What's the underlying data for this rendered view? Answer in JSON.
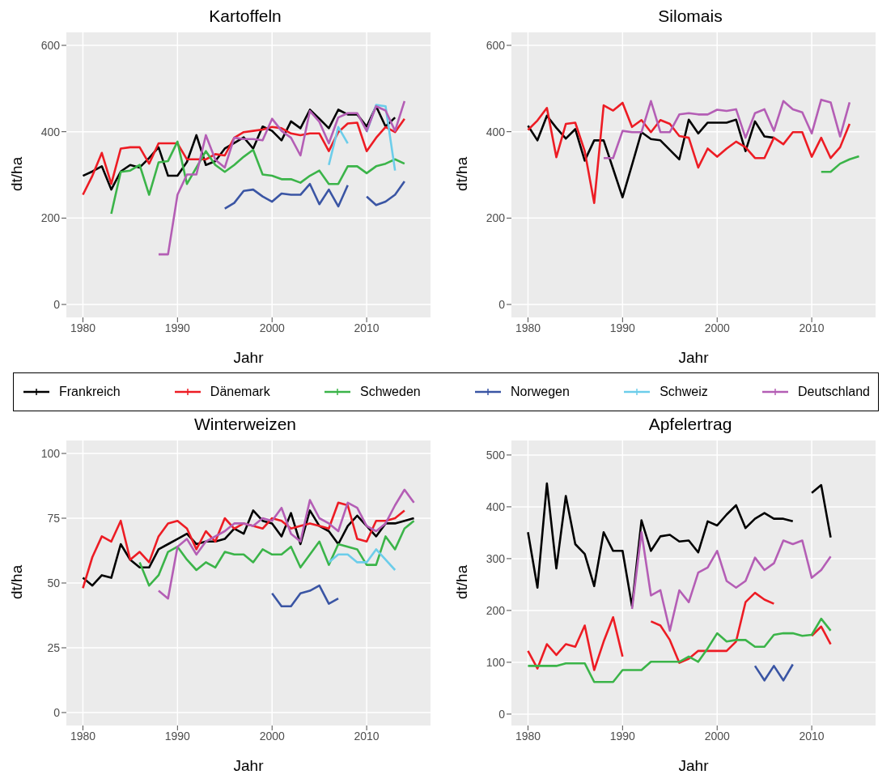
{
  "chart_data": [
    {
      "type": "line",
      "title": "Kartoffeln",
      "xlabel": "Jahr",
      "ylabel": "dt/ha",
      "xlim": [
        1978.25,
        2016.75
      ],
      "xticks": [
        1980,
        1990,
        2000,
        2010
      ],
      "ylim": [
        -30,
        630
      ],
      "yticks": [
        0,
        200,
        400,
        600
      ],
      "grid": true,
      "legend": "bottom",
      "series": [
        {
          "name": "Frankreich",
          "color": "#000000",
          "x": [
            1980,
            1981,
            1982,
            1983,
            1984,
            1985,
            1986,
            1987,
            1988,
            1989,
            1990,
            1991,
            1992,
            1993,
            1994,
            1995,
            1996,
            1997,
            1998,
            1999,
            2000,
            2001,
            2002,
            2003,
            2004,
            2005,
            2006,
            2007,
            2008,
            2009,
            2010,
            2011,
            2012,
            2013
          ],
          "values": [
            298,
            308,
            320,
            266,
            308,
            323,
            317,
            339,
            364,
            298,
            298,
            330,
            392,
            323,
            332,
            361,
            374,
            387,
            361,
            412,
            402,
            380,
            424,
            408,
            451,
            430,
            408,
            451,
            440,
            440,
            412,
            459,
            412,
            433
          ]
        },
        {
          "name": "Dänemark",
          "color": "#ed1c24",
          "x": [
            1980,
            1981,
            1982,
            1983,
            1984,
            1985,
            1986,
            1987,
            1988,
            1989,
            1990,
            1991,
            1992,
            1993,
            1994,
            1995,
            1996,
            1997,
            1998,
            1999,
            2000,
            2001,
            2002,
            2003,
            2004,
            2005,
            2006,
            2007,
            2008,
            2009,
            2010,
            2011,
            2012,
            2013,
            2014
          ],
          "values": [
            254,
            298,
            351,
            279,
            361,
            364,
            364,
            326,
            373,
            373,
            373,
            336,
            336,
            336,
            348,
            345,
            386,
            399,
            402,
            405,
            411,
            408,
            396,
            392,
            396,
            396,
            355,
            399,
            419,
            421,
            355,
            386,
            411,
            399,
            430
          ]
        },
        {
          "name": "Schweden",
          "color": "#3bb449",
          "x": [
            1983,
            1984,
            1985,
            1986,
            1987,
            1988,
            1989,
            1990,
            1991,
            1992,
            1993,
            1994,
            1995,
            1996,
            1997,
            1998,
            1999,
            2000,
            2001,
            2002,
            2003,
            2004,
            2005,
            2006,
            2007,
            2008,
            2009,
            2010,
            2011,
            2012,
            2013,
            2014
          ],
          "values": [
            210,
            307,
            310,
            323,
            254,
            329,
            332,
            377,
            279,
            317,
            355,
            323,
            307,
            323,
            342,
            358,
            301,
            298,
            290,
            290,
            282,
            298,
            310,
            279,
            279,
            320,
            320,
            304,
            320,
            326,
            336,
            326
          ]
        },
        {
          "name": "Norwegen",
          "color": "#3a55a4",
          "x": [
            1995,
            1996,
            1997,
            1998,
            1999,
            2000,
            2001,
            2002,
            2003,
            2004,
            2005,
            2006,
            2007,
            2008,
            2009,
            2010,
            2011,
            2012,
            2013,
            2014
          ],
          "values": [
            222,
            235,
            263,
            266,
            250,
            238,
            257,
            254,
            254,
            279,
            232,
            266,
            227,
            276,
            null,
            250,
            230,
            238,
            254,
            285
          ]
        },
        {
          "name": "Schweiz",
          "color": "#6ccdea",
          "x": [
            2006,
            2007,
            2008,
            2009,
            2010,
            2011,
            2012,
            2013
          ],
          "values": [
            323,
            411,
            373,
            null,
            399,
            462,
            459,
            310
          ]
        },
        {
          "name": "Deutschland",
          "color": "#b45eb5",
          "x": [
            1988,
            1989,
            1990,
            1991,
            1992,
            1993,
            1994,
            1995,
            1996,
            1997,
            1998,
            1999,
            2000,
            2001,
            2002,
            2003,
            2004,
            2005,
            2006,
            2007,
            2008,
            2009,
            2010,
            2011,
            2012,
            2013,
            2014
          ],
          "values": [
            116,
            116,
            254,
            301,
            301,
            392,
            335,
            317,
            386,
            383,
            383,
            380,
            430,
            402,
            386,
            345,
            448,
            423,
            373,
            433,
            443,
            443,
            402,
            459,
            449,
            402,
            471
          ]
        }
      ]
    },
    {
      "type": "line",
      "title": "Silomais",
      "xlabel": "Jahr",
      "ylabel": "dt/ha",
      "xlim": [
        1978.25,
        2016.75
      ],
      "xticks": [
        1980,
        1990,
        2000,
        2010
      ],
      "ylim": [
        -30,
        630
      ],
      "yticks": [
        0,
        200,
        400,
        600
      ],
      "grid": true,
      "series": [
        {
          "name": "Frankreich",
          "color": "#000000",
          "x": [
            1980,
            1981,
            1982,
            1983,
            1984,
            1985,
            1986,
            1987,
            1988,
            1989,
            1990,
            1991,
            1992,
            1993,
            1994,
            1995,
            1996,
            1997,
            1998,
            1999,
            2000,
            2001,
            2002,
            2003,
            2004,
            2005,
            2006
          ],
          "values": [
            414,
            380,
            437,
            409,
            384,
            406,
            333,
            380,
            380,
            314,
            248,
            323,
            399,
            383,
            380,
            358,
            336,
            428,
            396,
            421,
            421,
            421,
            428,
            355,
            424,
            389,
            386
          ]
        },
        {
          "name": "Dänemark",
          "color": "#ed1c24",
          "x": [
            1980,
            1981,
            1982,
            1983,
            1984,
            1985,
            1986,
            1987,
            1988,
            1989,
            1990,
            1991,
            1992,
            1993,
            1994,
            1995,
            1996,
            1997,
            1998,
            1999,
            2000,
            2001,
            2002,
            2003,
            2004,
            2005,
            2006,
            2007,
            2008,
            2009,
            2010,
            2011,
            2012,
            2013,
            2014
          ],
          "values": [
            404,
            426,
            455,
            341,
            418,
            421,
            355,
            235,
            461,
            449,
            467,
            411,
            427,
            399,
            427,
            418,
            390,
            386,
            317,
            361,
            342,
            361,
            377,
            364,
            339,
            339,
            386,
            371,
            399,
            399,
            342,
            386,
            339,
            364,
            418
          ]
        },
        {
          "name": "Schweden",
          "color": "#3bb449",
          "x": [
            2011,
            2012,
            2013,
            2014,
            2015
          ],
          "values": [
            307,
            307,
            326,
            336,
            343
          ]
        },
        {
          "name": "Deutschland",
          "color": "#b45eb5",
          "x": [
            1988,
            1989,
            1990,
            1991,
            1992,
            1993,
            1994,
            1995,
            1996,
            1997,
            1998,
            1999,
            2000,
            2001,
            2002,
            2003,
            2004,
            2005,
            2006,
            2007,
            2008,
            2009,
            2010,
            2011,
            2012,
            2013,
            2014
          ],
          "values": [
            339,
            339,
            402,
            399,
            399,
            471,
            399,
            399,
            440,
            443,
            440,
            440,
            451,
            448,
            452,
            386,
            443,
            452,
            402,
            471,
            452,
            445,
            396,
            474,
            468,
            389,
            468
          ]
        }
      ]
    },
    {
      "type": "line",
      "title": "Winterweizen",
      "xlabel": "Jahr",
      "ylabel": "dt/ha",
      "xlim": [
        1978.25,
        2016.75
      ],
      "xticks": [
        1980,
        1990,
        2000,
        2010
      ],
      "ylim": [
        -5,
        105
      ],
      "yticks": [
        0,
        25,
        50,
        75,
        100
      ],
      "grid": true,
      "series": [
        {
          "name": "Frankreich",
          "color": "#000000",
          "x": [
            1980,
            1981,
            1982,
            1983,
            1984,
            1985,
            1986,
            1987,
            1988,
            1989,
            1990,
            1991,
            1992,
            1993,
            1994,
            1995,
            1996,
            1997,
            1998,
            1999,
            2000,
            2001,
            2002,
            2003,
            2004,
            2005,
            2006,
            2007,
            2008,
            2009,
            2010,
            2011,
            2012,
            2013,
            2014,
            2015
          ],
          "values": [
            52,
            49,
            53,
            52,
            65,
            59,
            56,
            56,
            63,
            65,
            67,
            69,
            65,
            66,
            66,
            67,
            71,
            69,
            78,
            74,
            73,
            68,
            77,
            65,
            78,
            72,
            70,
            65,
            72,
            76,
            72,
            68,
            73,
            73,
            74,
            75
          ]
        },
        {
          "name": "Dänemark",
          "color": "#ed1c24",
          "x": [
            1980,
            1981,
            1982,
            1983,
            1984,
            1985,
            1986,
            1987,
            1988,
            1989,
            1990,
            1991,
            1992,
            1993,
            1994,
            1995,
            1996,
            1997,
            1998,
            1999,
            2000,
            2001,
            2002,
            2003,
            2004,
            2005,
            2006,
            2007,
            2008,
            2009,
            2010,
            2011,
            2012,
            2013,
            2014
          ],
          "values": [
            48,
            60,
            68,
            66,
            74,
            59,
            62,
            58,
            68,
            73,
            74,
            71,
            63,
            70,
            66,
            75,
            71,
            73,
            72,
            71,
            75,
            74,
            71,
            72,
            73,
            72,
            71,
            81,
            80,
            67,
            66,
            74,
            74,
            75,
            78
          ]
        },
        {
          "name": "Schweden",
          "color": "#3bb449",
          "x": [
            1986,
            1987,
            1988,
            1989,
            1990,
            1991,
            1992,
            1993,
            1994,
            1995,
            1996,
            1997,
            1998,
            1999,
            2000,
            2001,
            2002,
            2003,
            2004,
            2005,
            2006,
            2007,
            2008,
            2009,
            2010,
            2011,
            2012,
            2013,
            2014,
            2015
          ],
          "values": [
            58,
            49,
            53,
            62,
            64,
            59,
            55,
            58,
            56,
            62,
            61,
            61,
            58,
            63,
            61,
            61,
            64,
            56,
            61,
            66,
            57,
            65,
            64,
            63,
            57,
            57,
            68,
            63,
            71,
            74
          ]
        },
        {
          "name": "Norwegen",
          "color": "#3a55a4",
          "x": [
            2000,
            2001,
            2002,
            2003,
            2004,
            2005,
            2006,
            2007
          ],
          "values": [
            46,
            41,
            41,
            46,
            47,
            49,
            42,
            44
          ]
        },
        {
          "name": "Schweiz",
          "color": "#6ccdea",
          "x": [
            2006,
            2007,
            2008,
            2009,
            2010,
            2011,
            2012,
            2013
          ],
          "values": [
            58,
            61,
            61,
            58,
            58,
            63,
            59,
            55
          ]
        },
        {
          "name": "Deutschland",
          "color": "#b45eb5",
          "x": [
            1988,
            1989,
            1990,
            1991,
            1992,
            1993,
            1994,
            1995,
            1996,
            1997,
            1998,
            1999,
            2000,
            2001,
            2002,
            2003,
            2004,
            2005,
            2006,
            2007,
            2008,
            2009,
            2010,
            2011,
            2012,
            2013,
            2014,
            2015
          ],
          "values": [
            47,
            44,
            64,
            67,
            61,
            66,
            68,
            70,
            73,
            73,
            72,
            75,
            74,
            79,
            69,
            66,
            82,
            75,
            73,
            70,
            81,
            79,
            72,
            70,
            73,
            80,
            86,
            81
          ]
        }
      ]
    },
    {
      "type": "line",
      "title": "Apfelertrag",
      "xlabel": "Jahr",
      "ylabel": "dt/ha",
      "xlim": [
        1978.25,
        2016.75
      ],
      "xticks": [
        1980,
        1990,
        2000,
        2010
      ],
      "ylim": [
        -22,
        528
      ],
      "yticks": [
        0,
        100,
        200,
        300,
        400,
        500
      ],
      "grid": true,
      "series": [
        {
          "name": "Frankreich",
          "color": "#000000",
          "x": [
            1980,
            1981,
            1982,
            1983,
            1984,
            1985,
            1986,
            1987,
            1988,
            1989,
            1990,
            1991,
            1992,
            1993,
            1994,
            1995,
            1996,
            1997,
            1998,
            1999,
            2000,
            2001,
            2002,
            2003,
            2004,
            2005,
            2006,
            2007,
            2008,
            2009,
            2010,
            2011,
            2012
          ],
          "values": [
            351,
            244,
            445,
            281,
            421,
            328,
            309,
            247,
            351,
            315,
            315,
            208,
            374,
            315,
            343,
            346,
            333,
            335,
            312,
            372,
            364,
            385,
            403,
            359,
            377,
            388,
            377,
            377,
            372,
            null,
            427,
            442,
            341
          ]
        },
        {
          "name": "Dänemark",
          "color": "#ed1c24",
          "x": [
            1980,
            1981,
            1982,
            1983,
            1984,
            1985,
            1986,
            1987,
            1988,
            1989,
            1990,
            1991,
            1992,
            1993,
            1994,
            1995,
            1996,
            1997,
            1998,
            1999,
            2000,
            2001,
            2002,
            2003,
            2004,
            2005,
            2006,
            2007,
            2008,
            2009,
            2010,
            2011,
            2012
          ],
          "values": [
            122,
            88,
            135,
            114,
            135,
            130,
            171,
            85,
            140,
            187,
            111,
            null,
            null,
            179,
            171,
            143,
            99,
            107,
            122,
            122,
            122,
            122,
            140,
            216,
            234,
            221,
            213,
            null,
            null,
            null,
            151,
            169,
            135
          ]
        },
        {
          "name": "Schweden",
          "color": "#3bb449",
          "x": [
            1980,
            1981,
            1982,
            1983,
            1984,
            1985,
            1986,
            1987,
            1988,
            1989,
            1990,
            1991,
            1992,
            1993,
            1994,
            1995,
            1996,
            1997,
            1998,
            1999,
            2000,
            2001,
            2002,
            2003,
            2004,
            2005,
            2006,
            2007,
            2008,
            2009,
            2010,
            2011,
            2012
          ],
          "values": [
            93,
            93,
            93,
            93,
            98,
            98,
            98,
            62,
            62,
            62,
            85,
            85,
            85,
            101,
            101,
            101,
            101,
            111,
            101,
            127,
            156,
            140,
            143,
            143,
            130,
            130,
            153,
            156,
            156,
            151,
            153,
            184,
            161
          ]
        },
        {
          "name": "Norwegen",
          "color": "#3a55a4",
          "x": [
            2004,
            2005,
            2006,
            2007,
            2008
          ],
          "values": [
            93,
            65,
            93,
            65,
            96
          ]
        },
        {
          "name": "Deutschland",
          "color": "#b45eb5",
          "x": [
            1991,
            1992,
            1993,
            1994,
            1995,
            1996,
            1997,
            1998,
            1999,
            2000,
            2001,
            2002,
            2003,
            2004,
            2005,
            2006,
            2007,
            2008,
            2009,
            2010,
            2011,
            2012
          ],
          "values": [
            203,
            351,
            229,
            239,
            161,
            239,
            216,
            273,
            283,
            315,
            257,
            244,
            257,
            302,
            278,
            291,
            335,
            328,
            335,
            263,
            278,
            304
          ]
        }
      ]
    }
  ]
}
